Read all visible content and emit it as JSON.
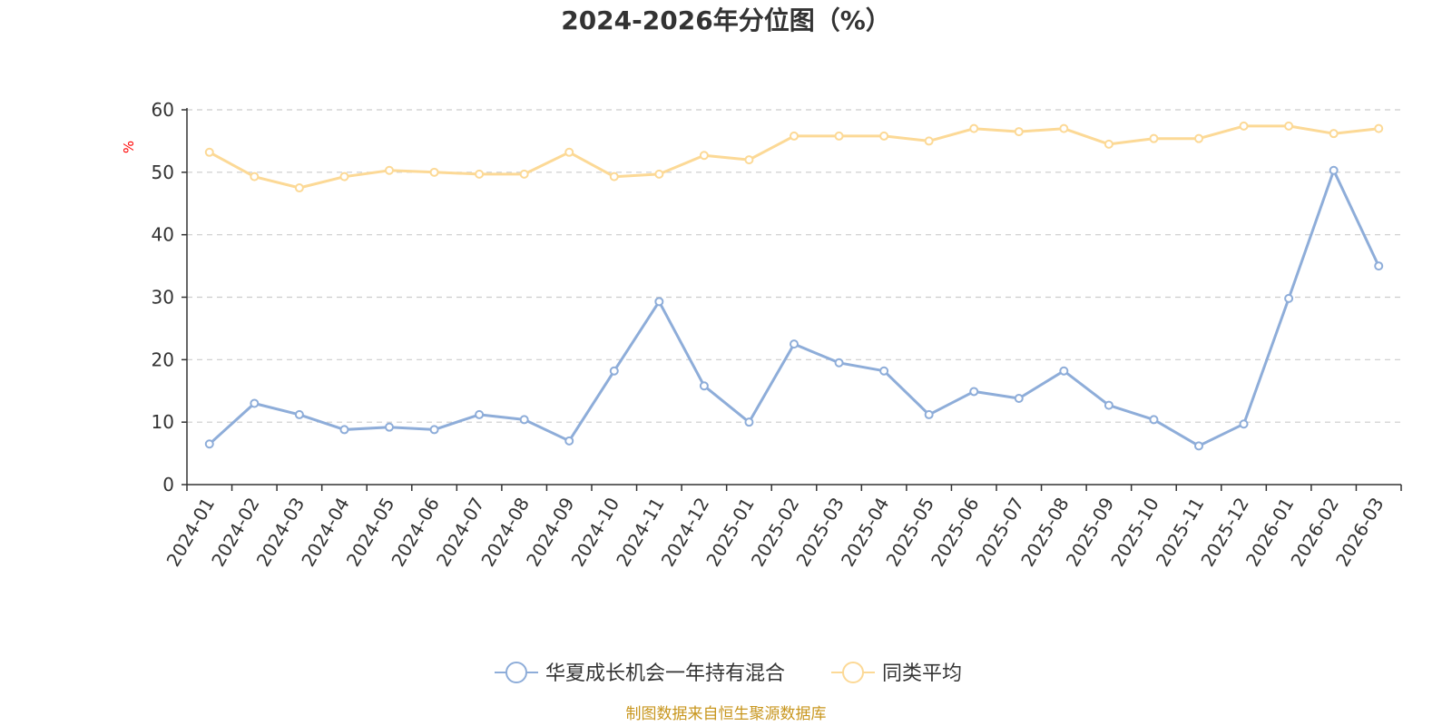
{
  "chart_data": {
    "type": "line",
    "title": "2024-2026年分位图（%）",
    "ylabel": "%",
    "xlabel": "",
    "ylim": [
      0,
      60
    ],
    "yticks": [
      0,
      10,
      20,
      30,
      40,
      50,
      60
    ],
    "grid": true,
    "legend_position": "bottom",
    "categories": [
      "2024-01",
      "2024-02",
      "2024-03",
      "2024-04",
      "2024-05",
      "2024-06",
      "2024-07",
      "2024-08",
      "2024-09",
      "2024-10",
      "2024-11",
      "2024-12",
      "2025-01",
      "2025-02",
      "2025-03",
      "2025-04",
      "2025-05",
      "2025-06",
      "2025-07",
      "2025-08",
      "2025-09",
      "2025-10",
      "2025-11",
      "2025-12",
      "2026-01",
      "2026-02",
      "2026-03"
    ],
    "series": [
      {
        "name": "华夏成长机会一年持有混合",
        "color": "#8eadd9",
        "values": [
          6.5,
          13.0,
          11.2,
          8.8,
          9.2,
          8.8,
          11.2,
          10.4,
          7.0,
          18.2,
          29.3,
          15.8,
          10.0,
          22.5,
          19.5,
          18.2,
          11.2,
          14.9,
          13.8,
          18.2,
          12.7,
          10.4,
          6.2,
          9.7,
          29.8,
          50.3,
          35.0
        ]
      },
      {
        "name": "同类平均",
        "color": "#fcd996",
        "values": [
          53.2,
          49.3,
          47.5,
          49.3,
          50.3,
          50.0,
          49.7,
          49.7,
          53.2,
          49.3,
          49.7,
          52.7,
          52.0,
          55.8,
          55.8,
          55.8,
          55.0,
          57.0,
          56.5,
          57.0,
          54.5,
          55.4,
          55.4,
          57.4,
          57.4,
          56.2,
          57.0
        ]
      }
    ]
  },
  "footer": {
    "source": "制图数据来自恒生聚源数据库"
  }
}
